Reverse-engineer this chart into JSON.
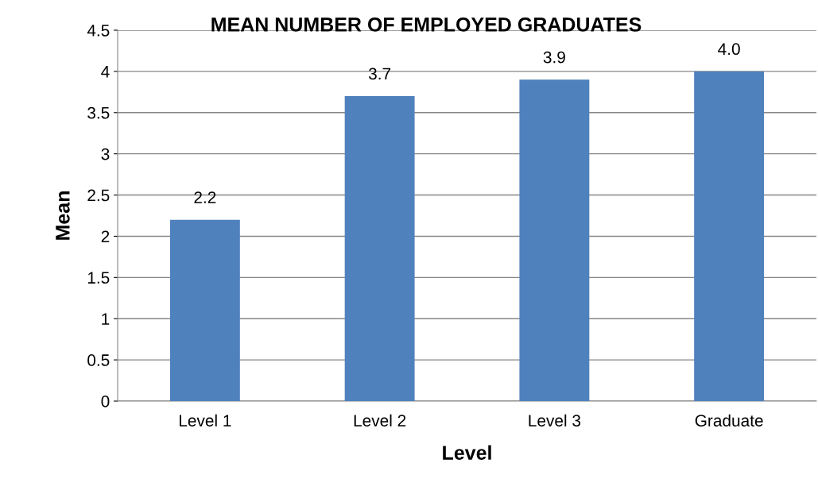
{
  "chart_data": {
    "type": "bar",
    "title": "MEAN NUMBER OF EMPLOYED GRADUATES",
    "xlabel": "Level",
    "ylabel": "Mean",
    "categories": [
      "Level 1",
      "Level 2",
      "Level 3",
      "Graduate"
    ],
    "values": [
      2.2,
      3.7,
      3.9,
      4.0
    ],
    "value_labels": [
      "2.2",
      "3.7",
      "3.9",
      "4.0"
    ],
    "color": "#4f81bd",
    "ylim": [
      0,
      4.5
    ],
    "yticks": [
      0,
      0.5,
      1,
      1.5,
      2,
      2.5,
      3,
      3.5,
      4,
      4.5
    ],
    "grid": "y"
  }
}
